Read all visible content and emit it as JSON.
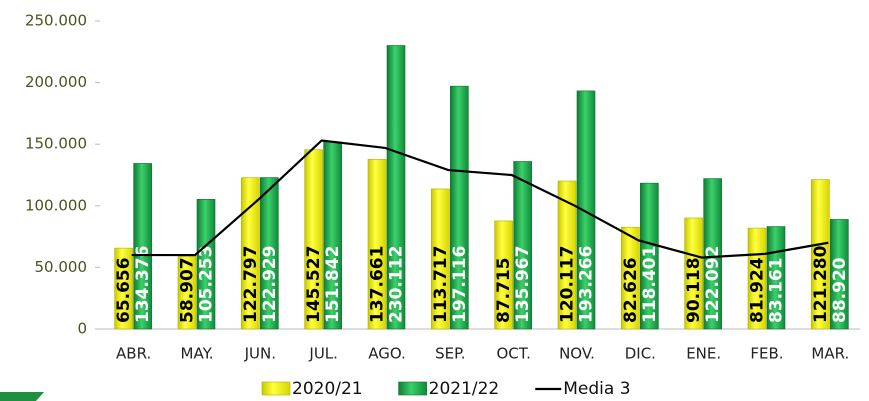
{
  "chart_data": {
    "type": "bar",
    "categories": [
      "ABR.",
      "MAY.",
      "JUN.",
      "JUL.",
      "AGO.",
      "SEP.",
      "OCT.",
      "NOV.",
      "DIC.",
      "ENE.",
      "FEB.",
      "MAR."
    ],
    "series": [
      {
        "name": "2020/21",
        "color": "#ffff00",
        "type": "bar",
        "values": [
          65656,
          58907,
          122797,
          145527,
          137661,
          113717,
          87715,
          120117,
          82626,
          90118,
          81924,
          121280
        ],
        "value_labels": [
          "65.656",
          "58.907",
          "122.797",
          "145.527",
          "137.661",
          "113.717",
          "87.715",
          "120.117",
          "82.626",
          "90.118",
          "81.924",
          "121.280"
        ]
      },
      {
        "name": "2021/22",
        "color": "#1fae4b",
        "type": "bar",
        "values": [
          134376,
          105253,
          122929,
          151842,
          230112,
          197116,
          135967,
          193266,
          118401,
          122092,
          83161,
          88920
        ],
        "value_labels": [
          "134.376",
          "105.253",
          "122.929",
          "151.842",
          "230.112",
          "197.116",
          "135.967",
          "193.266",
          "118.401",
          "122.092",
          "83.161",
          "88.920"
        ]
      },
      {
        "name": "Media 3",
        "color": "#000000",
        "type": "line",
        "values": [
          60000,
          60000,
          105000,
          153000,
          147000,
          129000,
          125000,
          100000,
          72000,
          58000,
          61000,
          70000
        ]
      }
    ],
    "ylim": [
      0,
      250000
    ],
    "yticks": [
      0,
      {
        "value": 50000,
        "label": "50.000"
      },
      {
        "value": 100000,
        "label": "100.000"
      },
      {
        "value": 150000,
        "label": "150.000"
      },
      {
        "value": 200000,
        "label": "200.000"
      },
      {
        "value": 250000,
        "label": "250.000"
      }
    ],
    "grid": false,
    "legend": "bottom"
  }
}
